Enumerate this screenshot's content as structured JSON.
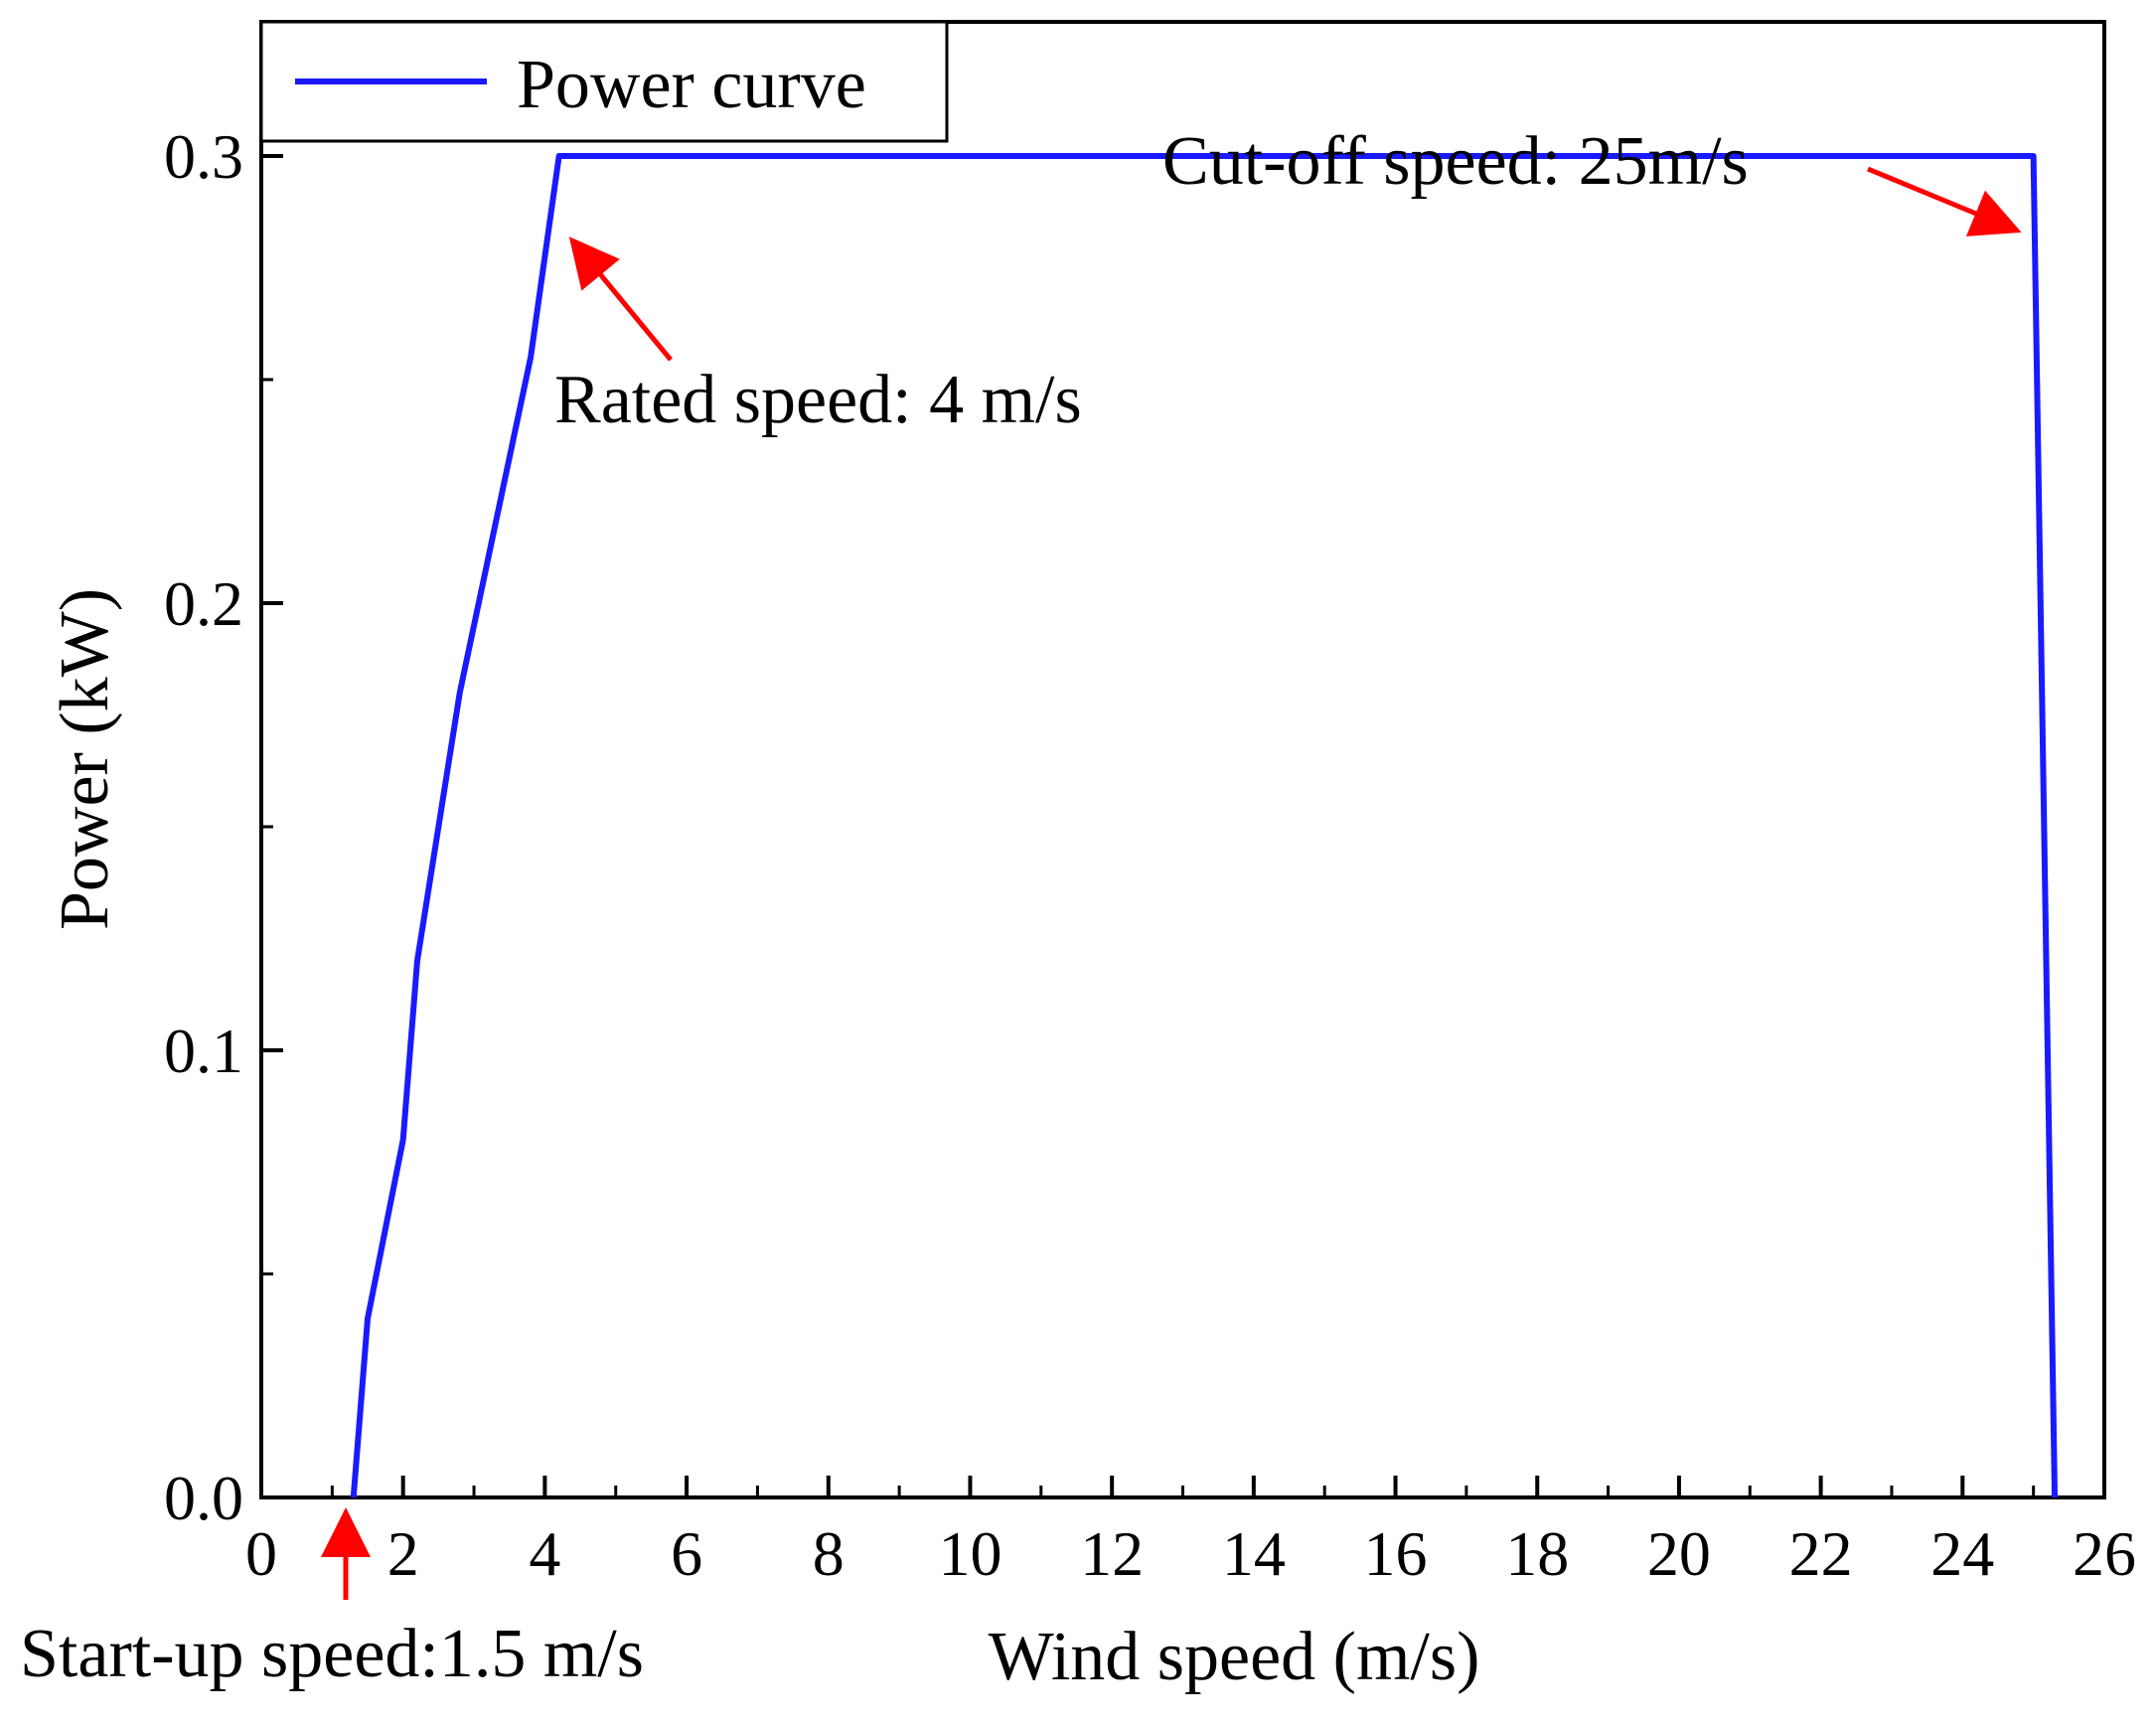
{
  "chart_data": {
    "type": "line",
    "title": "",
    "xlabel": "Wind speed (m/s)",
    "ylabel": "Power (kW)",
    "xlim": [
      0,
      26
    ],
    "ylim": [
      0,
      0.33
    ],
    "xticks": [
      0,
      2,
      4,
      6,
      8,
      10,
      12,
      14,
      16,
      18,
      20,
      22,
      24,
      26
    ],
    "xtick_labels": [
      "0",
      "2",
      "4",
      "6",
      "8",
      "10",
      "12",
      "14",
      "16",
      "18",
      "20",
      "22",
      "24",
      "26"
    ],
    "yticks": [
      0.0,
      0.1,
      0.2,
      0.3
    ],
    "ytick_labels": [
      "0.0",
      "0.1",
      "0.2",
      "0.3"
    ],
    "grid": false,
    "legend": {
      "position": "top-left",
      "entries": [
        "Power curve"
      ]
    },
    "series": [
      {
        "name": "Power curve",
        "color": "#1a1aff",
        "x": [
          1.3,
          1.5,
          2.0,
          2.2,
          2.8,
          3.2,
          3.8,
          4.2,
          4.5,
          6,
          8,
          10,
          12,
          14,
          16,
          18,
          20,
          22,
          24,
          25.0,
          25.3
        ],
        "y": [
          0.0,
          0.04,
          0.08,
          0.12,
          0.18,
          0.21,
          0.255,
          0.3,
          0.3,
          0.3,
          0.3,
          0.3,
          0.3,
          0.3,
          0.3,
          0.3,
          0.3,
          0.3,
          0.3,
          0.3,
          0.0
        ]
      }
    ],
    "annotations": [
      {
        "text": "Rated speed: 4 m/s",
        "point": [
          4.2,
          0.3
        ],
        "color": "#ff0000"
      },
      {
        "text": "Cut-off speed: 25m/s",
        "point": [
          25.0,
          0.3
        ],
        "color": "#ff0000"
      },
      {
        "text": "Start-up speed:1.5 m/s",
        "point": [
          1.3,
          0.0
        ],
        "color": "#ff0000"
      }
    ]
  }
}
